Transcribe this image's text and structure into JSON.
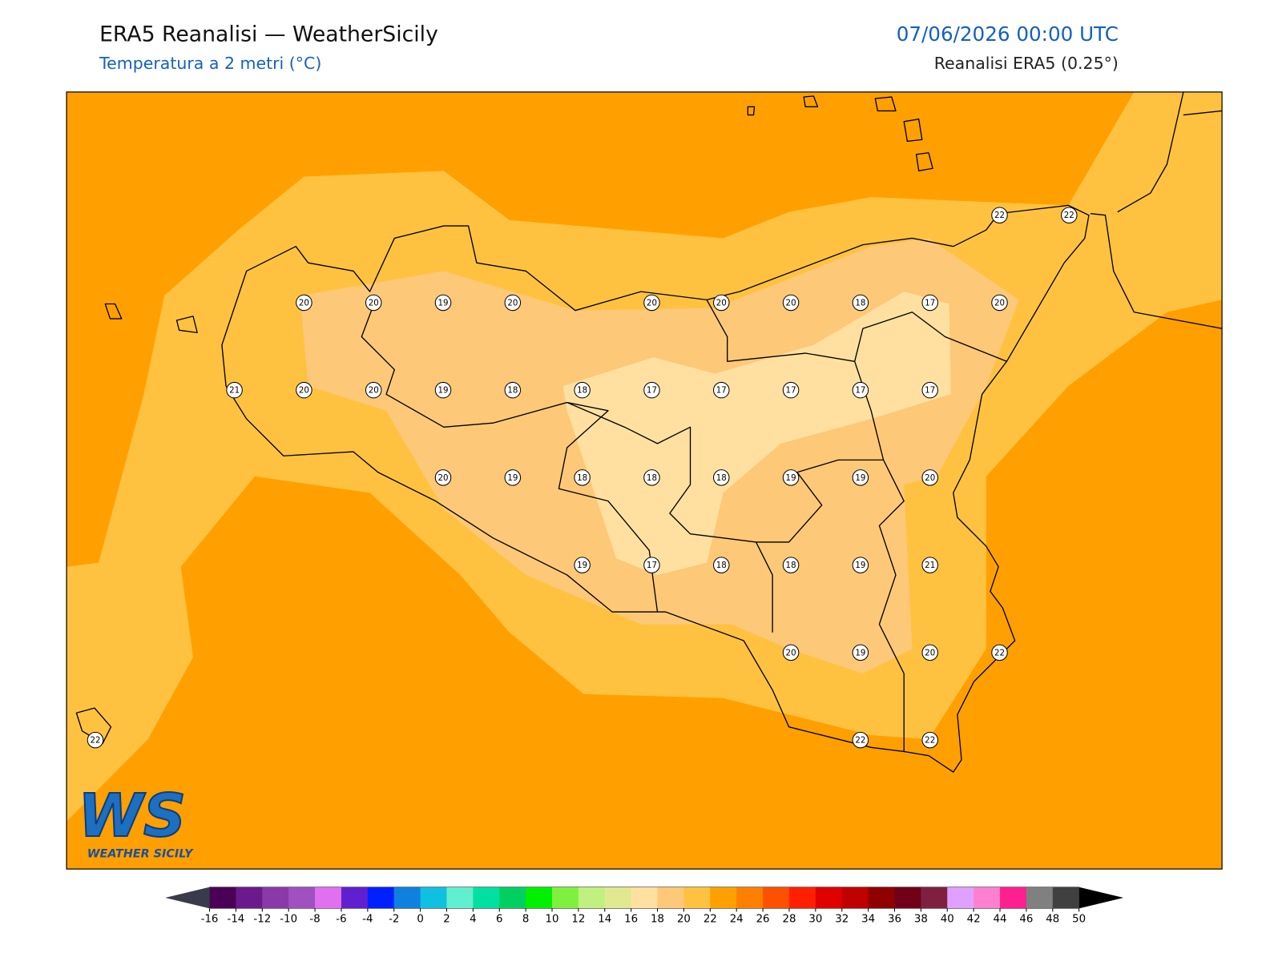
{
  "header": {
    "title": "ERA5 Reanalisi — WeatherSicily",
    "subtitle": "Temperatura a 2 metri (°C)",
    "datetime": "07/06/2026 00:00 UTC",
    "source": "Reanalisi ERA5 (0.25°)"
  },
  "logo": {
    "text": "WS",
    "caption": "WEATHER SICILY"
  },
  "stations": {
    "grid": [
      [
        null,
        null,
        null,
        null,
        null,
        null,
        null,
        null,
        null,
        null,
        null,
        null,
        null,
        22,
        22
      ],
      [
        null,
        null,
        null,
        20,
        20,
        19,
        20,
        null,
        20,
        20,
        20,
        18,
        17,
        20,
        null
      ],
      [
        null,
        null,
        21,
        20,
        20,
        19,
        18,
        18,
        17,
        17,
        17,
        17,
        17,
        null,
        null
      ],
      [
        null,
        null,
        null,
        null,
        null,
        20,
        19,
        18,
        18,
        18,
        19,
        19,
        20,
        null,
        null
      ],
      [
        null,
        null,
        null,
        null,
        null,
        null,
        null,
        19,
        17,
        18,
        18,
        19,
        21,
        null,
        null
      ],
      [
        null,
        null,
        null,
        null,
        null,
        null,
        null,
        null,
        null,
        null,
        20,
        19,
        20,
        22,
        null
      ],
      [
        22,
        null,
        null,
        null,
        null,
        null,
        null,
        null,
        null,
        null,
        null,
        22,
        22,
        null,
        null
      ]
    ]
  },
  "colorbar": {
    "ticks": [
      -16,
      -14,
      -12,
      -10,
      -8,
      -6,
      -4,
      -2,
      0,
      2,
      4,
      6,
      8,
      10,
      12,
      14,
      16,
      18,
      20,
      22,
      24,
      26,
      28,
      30,
      32,
      34,
      36,
      38,
      40,
      42,
      44,
      46,
      48,
      50
    ],
    "colors": [
      "#4a0055",
      "#6a1a8a",
      "#8a3aa8",
      "#a050c0",
      "#e070f0",
      "#6020d0",
      "#0020ff",
      "#1080e0",
      "#10c0e0",
      "#60f0d0",
      "#00e0a0",
      "#00d060",
      "#00f000",
      "#80f040",
      "#c0f080",
      "#e0e890",
      "#ffe0a0",
      "#fdc878",
      "#ffc240",
      "#ffa000",
      "#ff8000",
      "#ff5000",
      "#ff2000",
      "#e00000",
      "#c00000",
      "#900000",
      "#700018",
      "#802040",
      "#e0a0ff",
      "#ff80d0",
      "#ff2090",
      "#808080",
      "#404040"
    ],
    "under_color": "#3a3a4a",
    "over_color": "#000000"
  }
}
